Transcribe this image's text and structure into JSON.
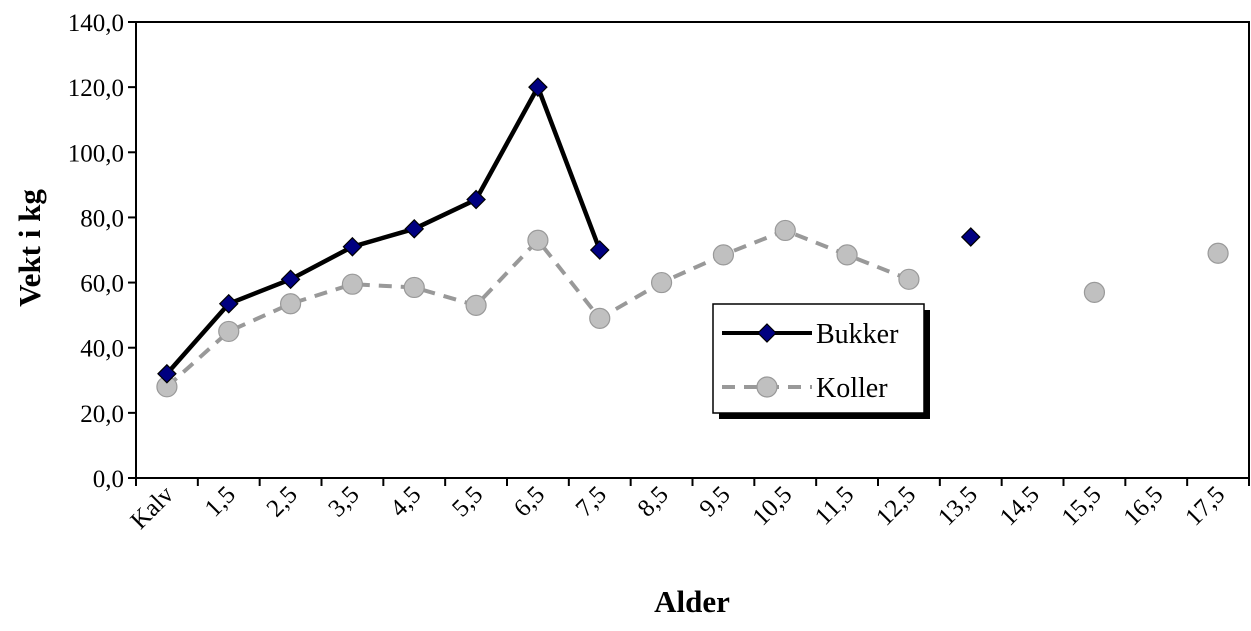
{
  "chart_data": {
    "type": "line",
    "title": "",
    "xlabel": "Alder",
    "ylabel": "Vekt i kg",
    "categories": [
      "Kalv",
      "1,5",
      "2,5",
      "3,5",
      "4,5",
      "5,5",
      "6,5",
      "7,5",
      "8,5",
      "9,5",
      "10,5",
      "11,5",
      "12,5",
      "13,5",
      "14,5",
      "15,5",
      "16,5",
      "17,5"
    ],
    "yticks": [
      "0,0",
      "20,0",
      "40,0",
      "60,0",
      "80,0",
      "100,0",
      "120,0",
      "140,0"
    ],
    "ylim": [
      0,
      140
    ],
    "grid": false,
    "legend_position": "center-right",
    "series": [
      {
        "name": "Bukker",
        "color": "#000000",
        "marker": "diamond",
        "marker_color": "#000080",
        "line_style": "solid",
        "values": [
          32,
          53.5,
          61,
          71,
          76.5,
          85.5,
          120,
          70,
          null,
          null,
          null,
          null,
          null,
          74,
          null,
          null,
          null,
          null
        ]
      },
      {
        "name": "Koller",
        "color": "#999999",
        "marker": "circle",
        "marker_color": "#c0c0c0",
        "line_style": "dashed",
        "values": [
          28,
          45,
          53.5,
          59.5,
          58.5,
          53,
          73,
          49,
          60,
          68.5,
          76,
          68.5,
          61,
          null,
          null,
          57,
          null,
          69
        ]
      }
    ]
  }
}
